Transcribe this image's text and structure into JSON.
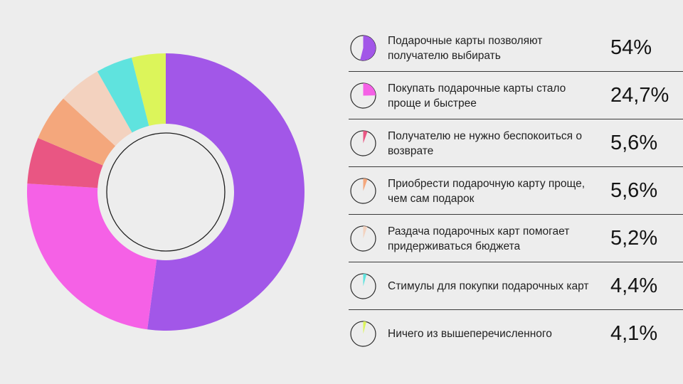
{
  "chart_data": {
    "type": "pie",
    "title": "",
    "categories": [
      "Подарочные карты позволяют получателю выбирать",
      "Покупать подарочные карты стало проще и быстрее",
      "Получателю не нужно беспокоиться о возврате",
      "Приобрести подарочную карту проще, чем сам подарок",
      "Раздача подарочных карт помогает придерживаться бюджета",
      "Стимулы для покупки подарочных карт",
      "Ничего из вышеперечисленного"
    ],
    "values": [
      54,
      24.7,
      5.6,
      5.6,
      5.2,
      4.4,
      4.1
    ],
    "value_labels": [
      "54%",
      "24,7%",
      "5,6%",
      "5,6%",
      "5,2%",
      "4,4%",
      "4,1%"
    ],
    "colors": [
      "#a257e8",
      "#f561e6",
      "#e95683",
      "#f4a77c",
      "#f3d2bf",
      "#5fe3de",
      "#dcf55a"
    ],
    "legend_position": "right"
  }
}
